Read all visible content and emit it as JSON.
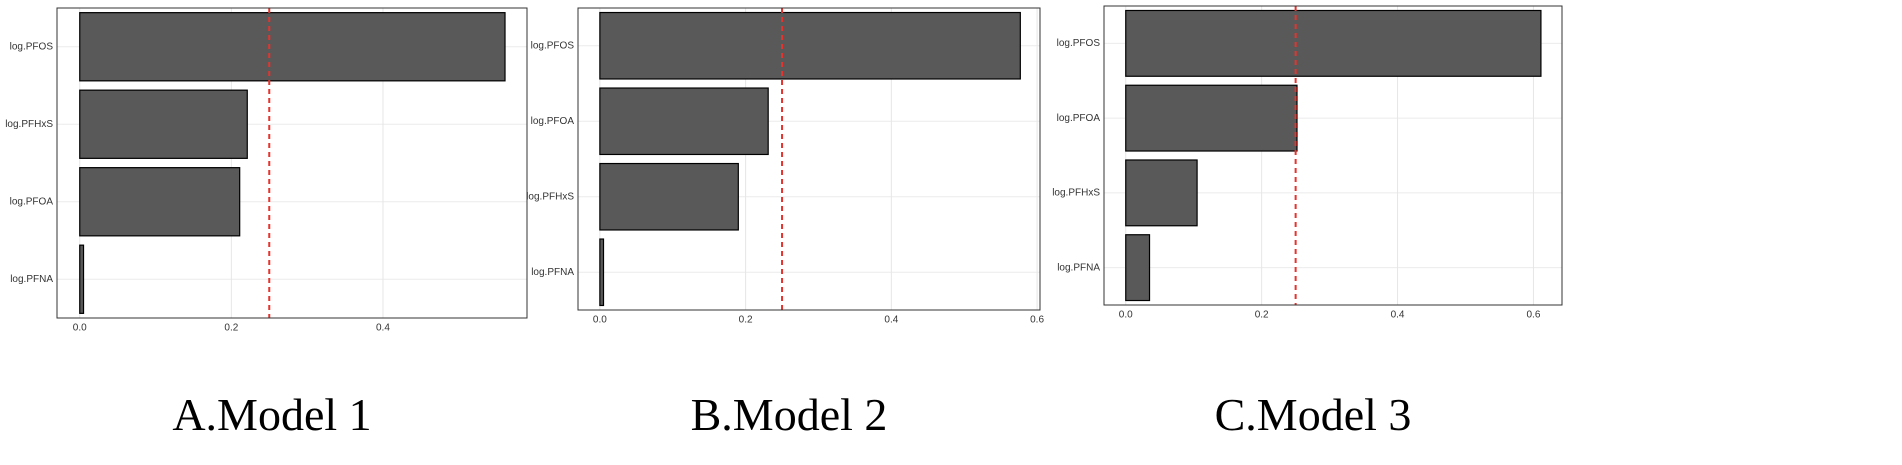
{
  "chart_data": [
    {
      "type": "bar",
      "title": "A.Model 1",
      "orientation": "horizontal",
      "categories": [
        "log.PFOS",
        "log.PFHxS",
        "log.PFOA",
        "log.PFNA"
      ],
      "values": [
        0.561,
        0.221,
        0.211,
        0.005
      ],
      "color": "#595959",
      "xlim": [
        -0.03,
        0.59
      ],
      "xticks": [
        {
          "value": 0,
          "label": "0.0"
        },
        0.2,
        0.4
      ],
      "reference_line": {
        "value": 0.25,
        "color": "#e8322d"
      },
      "grid": true
    },
    {
      "type": "bar",
      "title": "B.Model 2",
      "orientation": "horizontal",
      "categories": [
        "log.PFOS",
        "log.PFOA",
        "log.PFHxS",
        "log.PFNA"
      ],
      "values": [
        0.577,
        0.231,
        0.19,
        0.005
      ],
      "color": "#595959",
      "xlim": [
        -0.03,
        0.604
      ],
      "xticks": [
        {
          "value": 0,
          "label": "0.0"
        },
        0.2,
        0.4,
        0.6
      ],
      "reference_line": {
        "value": 0.25,
        "color": "#e8322d"
      },
      "grid": true
    },
    {
      "type": "bar",
      "title": "C.Model 3",
      "orientation": "horizontal",
      "categories": [
        "log.PFOS",
        "log.PFOA",
        "log.PFHxS",
        "log.PFNA"
      ],
      "values": [
        0.611,
        0.252,
        0.105,
        0.035
      ],
      "color": "#595959",
      "xlim": [
        -0.032,
        0.642
      ],
      "xticks": [
        {
          "value": 0,
          "label": "0.0"
        },
        0.2,
        0.4,
        0.6
      ],
      "reference_line": {
        "value": 0.25,
        "color": "#e8322d"
      },
      "grid": true
    }
  ]
}
